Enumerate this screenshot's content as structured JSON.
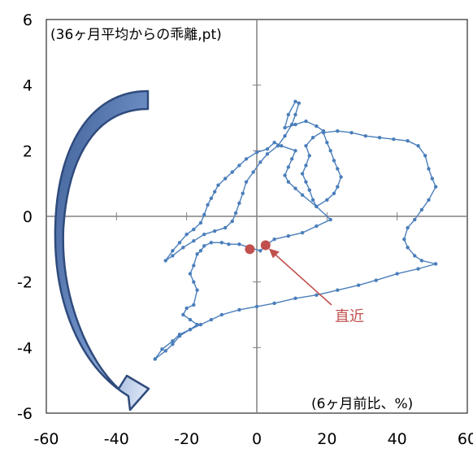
{
  "chart_data": {
    "type": "scatter",
    "title": "",
    "xlabel": "",
    "ylabel": "",
    "xlim": [
      -60,
      60
    ],
    "ylim": [
      -6,
      6
    ],
    "xticks": [
      -60,
      -40,
      -20,
      0,
      20,
      40,
      60
    ],
    "yticks": [
      -6,
      -4,
      -2,
      0,
      2,
      4,
      6
    ],
    "xtick_labels": [
      "-60",
      "-40",
      "-20",
      "0",
      "20",
      "40",
      "60"
    ],
    "ytick_labels": [
      "-6",
      "-4",
      "-2",
      "0",
      "2",
      "4",
      "6"
    ],
    "y_axis_note": "(36ヶ月平均からの乖離,pt)",
    "x_axis_note": "(6ヶ月前比、%)",
    "latest_label": "直近",
    "grid": false,
    "colors": {
      "line": "#4a7ebb",
      "highlight": "#c0504d",
      "arrow_fill": "#4f6fa8",
      "arrow_edge": "#2f4b7c",
      "axis": "#808080"
    },
    "series": [
      {
        "values": [
          [
            -29,
            -4.35
          ],
          [
            -26,
            -4.1
          ],
          [
            -24,
            -3.9
          ],
          [
            -22,
            -3.65
          ],
          [
            -19,
            -3.45
          ],
          [
            -17,
            -3.3
          ],
          [
            -19,
            -3.15
          ],
          [
            -21,
            -3.0
          ],
          [
            -20,
            -2.8
          ],
          [
            -18,
            -2.7
          ],
          [
            -17,
            -2.25
          ],
          [
            -18,
            -2.0
          ],
          [
            -19,
            -1.75
          ],
          [
            -18,
            -1.5
          ],
          [
            -17,
            -1.15
          ],
          [
            -16,
            -1.05
          ],
          [
            -15,
            -0.9
          ],
          [
            -13,
            -0.8
          ],
          [
            -10,
            -0.8
          ],
          [
            -8,
            -0.85
          ],
          [
            -5,
            -0.85
          ],
          [
            -2,
            -0.95
          ],
          [
            1,
            -1.05
          ],
          [
            3,
            -0.85
          ],
          [
            5,
            -0.7
          ],
          [
            9,
            -0.6
          ],
          [
            13,
            -0.5
          ],
          [
            17,
            -0.3
          ],
          [
            21,
            -0.1
          ],
          [
            17,
            0.3
          ],
          [
            13,
            0.65
          ],
          [
            11,
            0.85
          ],
          [
            9,
            1.05
          ],
          [
            8,
            1.25
          ],
          [
            9,
            1.5
          ],
          [
            10,
            1.75
          ],
          [
            11,
            2.0
          ],
          [
            7,
            2.15
          ],
          [
            5,
            2.25
          ],
          [
            3,
            2.05
          ],
          [
            0,
            1.95
          ],
          [
            -3,
            1.75
          ],
          [
            -5,
            1.55
          ],
          [
            -7,
            1.35
          ],
          [
            -9,
            1.15
          ],
          [
            -11,
            0.95
          ],
          [
            -12,
            0.75
          ],
          [
            -13,
            0.55
          ],
          [
            -14,
            0.35
          ],
          [
            -15,
            0.05
          ],
          [
            -16,
            -0.2
          ],
          [
            -18,
            -0.4
          ],
          [
            -20,
            -0.55
          ],
          [
            -22,
            -0.8
          ],
          [
            -24,
            -1.05
          ],
          [
            -26,
            -1.35
          ],
          [
            -24,
            -1.2
          ],
          [
            -21,
            -0.95
          ],
          [
            -18,
            -0.75
          ],
          [
            -15,
            -0.55
          ],
          [
            -12,
            -0.45
          ],
          [
            -9,
            -0.35
          ],
          [
            -7,
            -0.15
          ],
          [
            -6,
            0.1
          ],
          [
            -5,
            0.4
          ],
          [
            -4,
            0.7
          ],
          [
            -3,
            1.05
          ],
          [
            -1,
            1.35
          ],
          [
            1,
            1.65
          ],
          [
            3,
            1.9
          ],
          [
            6,
            2.15
          ],
          [
            8,
            2.45
          ],
          [
            10,
            2.8
          ],
          [
            11,
            3.1
          ],
          [
            12,
            3.45
          ],
          [
            11,
            3.5
          ],
          [
            9,
            3.1
          ],
          [
            8,
            2.7
          ],
          [
            11,
            2.8
          ],
          [
            14,
            2.9
          ],
          [
            17,
            2.75
          ],
          [
            19,
            2.6
          ],
          [
            16,
            2.4
          ],
          [
            14,
            2.15
          ],
          [
            15,
            1.85
          ],
          [
            14,
            1.55
          ],
          [
            13,
            1.3
          ],
          [
            14,
            1.05
          ],
          [
            15,
            0.8
          ],
          [
            16,
            0.5
          ],
          [
            17,
            0.3
          ],
          [
            20,
            0.5
          ],
          [
            22,
            0.7
          ],
          [
            23,
            0.9
          ],
          [
            24,
            1.2
          ],
          [
            23,
            1.45
          ],
          [
            22,
            1.7
          ],
          [
            21,
            2.0
          ],
          [
            20,
            2.25
          ],
          [
            19,
            2.55
          ],
          [
            23,
            2.6
          ],
          [
            27,
            2.55
          ],
          [
            31,
            2.45
          ],
          [
            35,
            2.4
          ],
          [
            39,
            2.35
          ],
          [
            43,
            2.3
          ],
          [
            46,
            2.15
          ],
          [
            48,
            1.85
          ],
          [
            49,
            1.45
          ],
          [
            50,
            1.15
          ],
          [
            51,
            0.9
          ],
          [
            49,
            0.5
          ],
          [
            47,
            0.2
          ],
          [
            45,
            -0.1
          ],
          [
            43,
            -0.35
          ],
          [
            42,
            -0.7
          ],
          [
            43,
            -0.95
          ],
          [
            45,
            -1.2
          ],
          [
            47,
            -1.35
          ],
          [
            51,
            -1.45
          ],
          [
            46,
            -1.6
          ],
          [
            40,
            -1.75
          ],
          [
            34,
            -1.95
          ],
          [
            29,
            -2.1
          ],
          [
            23,
            -2.25
          ],
          [
            17,
            -2.4
          ],
          [
            11,
            -2.5
          ],
          [
            5,
            -2.65
          ],
          [
            0,
            -2.75
          ],
          [
            -5,
            -2.85
          ],
          [
            -10,
            -3.0
          ],
          [
            -13,
            -3.15
          ],
          [
            -16,
            -3.3
          ],
          [
            -19,
            -3.45
          ],
          [
            -22,
            -3.6
          ],
          [
            -24,
            -3.8
          ],
          [
            -27,
            -4.05
          ],
          [
            -29,
            -4.35
          ]
        ]
      }
    ],
    "highlight_points": [
      [
        -2,
        -1.0
      ],
      [
        2.5,
        -0.88
      ]
    ],
    "arrow_caption": ""
  }
}
